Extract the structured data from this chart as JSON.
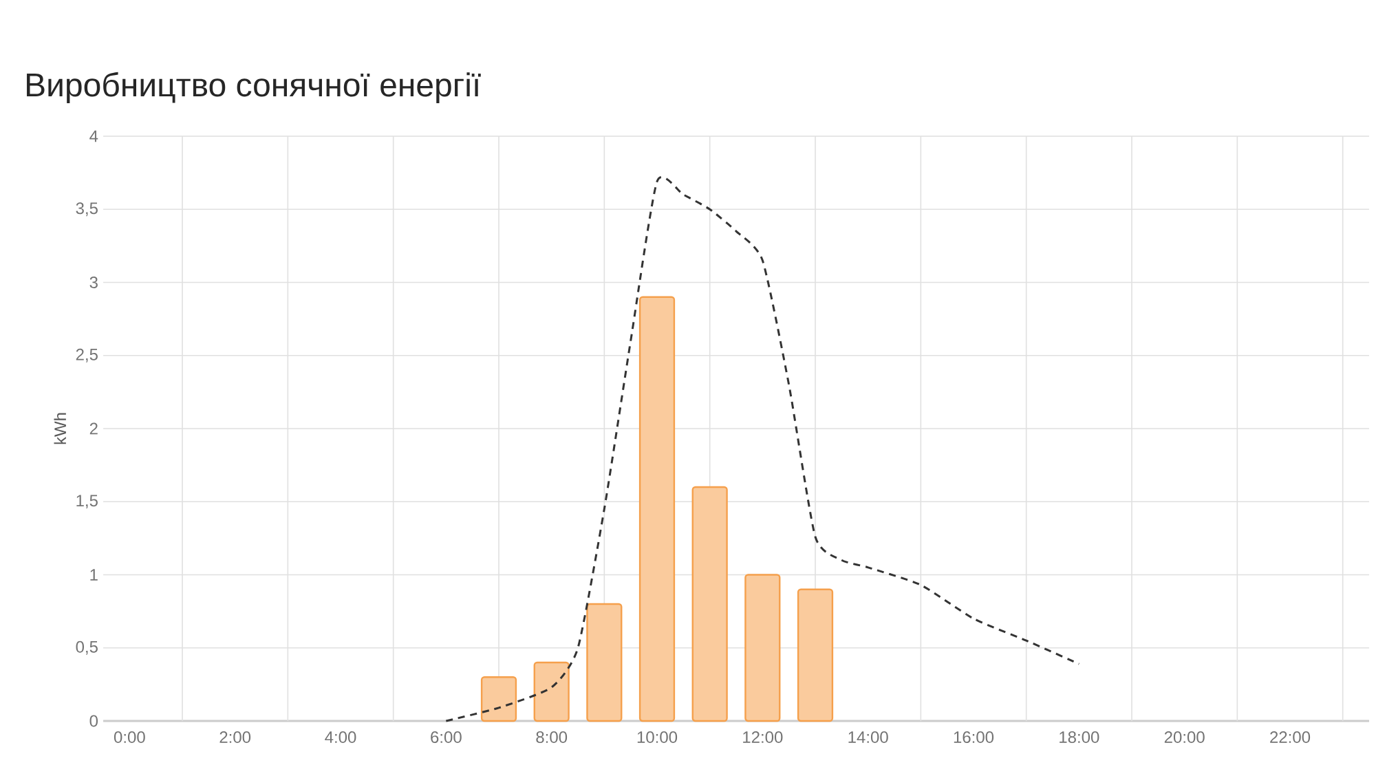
{
  "chart_data": {
    "type": "bar",
    "title": "Виробництво сонячної енергії",
    "ylabel": "kWh",
    "xlim": [
      -0.5,
      23.5
    ],
    "ylim": [
      0,
      4
    ],
    "xticks": [
      {
        "value": 0,
        "label": "0:00"
      },
      {
        "value": 1,
        "label": null
      },
      {
        "value": 2,
        "label": "2:00"
      },
      {
        "value": 3,
        "label": null
      },
      {
        "value": 4,
        "label": "4:00"
      },
      {
        "value": 5,
        "label": null
      },
      {
        "value": 6,
        "label": "6:00"
      },
      {
        "value": 7,
        "label": null
      },
      {
        "value": 8,
        "label": "8:00"
      },
      {
        "value": 9,
        "label": null
      },
      {
        "value": 10,
        "label": "10:00"
      },
      {
        "value": 11,
        "label": null
      },
      {
        "value": 12,
        "label": "12:00"
      },
      {
        "value": 13,
        "label": null
      },
      {
        "value": 14,
        "label": "14:00"
      },
      {
        "value": 15,
        "label": null
      },
      {
        "value": 16,
        "label": "16:00"
      },
      {
        "value": 17,
        "label": null
      },
      {
        "value": 18,
        "label": "18:00"
      },
      {
        "value": 19,
        "label": null
      },
      {
        "value": 20,
        "label": "20:00"
      },
      {
        "value": 21,
        "label": null
      },
      {
        "value": 22,
        "label": "22:00"
      },
      {
        "value": 23,
        "label": null
      }
    ],
    "yticks": [
      0,
      {
        "value": 0.5,
        "label": "0,5"
      },
      1,
      {
        "value": 1.5,
        "label": "1,5"
      },
      2,
      {
        "value": 2.5,
        "label": "2,5"
      },
      3,
      {
        "value": 3.5,
        "label": "3,5"
      },
      4
    ],
    "grid": true,
    "series": [
      {
        "color": "#f5a04c",
        "x": [
          7,
          8,
          9,
          10,
          11,
          12,
          13
        ],
        "values": [
          0.3,
          0.4,
          0.8,
          2.9,
          1.6,
          1.0,
          0.9
        ]
      },
      {
        "type": "line",
        "color": "#333333",
        "line_style": "dashed",
        "x": [
          6,
          7,
          8,
          8.5,
          9,
          9.5,
          10,
          10.5,
          11,
          11.5,
          12,
          12.5,
          13,
          13.5,
          14,
          15,
          16,
          17,
          18
        ],
        "values": [
          0,
          0.09,
          0.23,
          0.5,
          1.45,
          2.6,
          3.69,
          3.6,
          3.5,
          3.35,
          3.15,
          2.3,
          1.26,
          1.1,
          1.05,
          0.93,
          0.7,
          0.55,
          0.39
        ]
      }
    ]
  }
}
